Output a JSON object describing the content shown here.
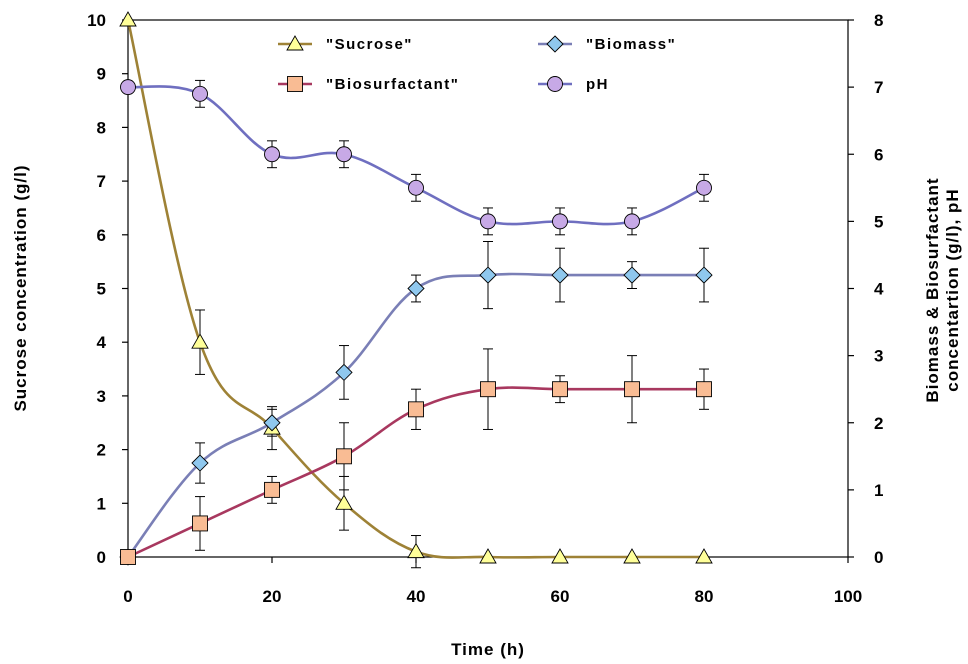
{
  "chart_data": {
    "type": "line",
    "xlabel": "Time (h)",
    "ylabel_left": "Sucrose concentration (g/l)",
    "ylabel_right_lines": [
      "Biomass & Biosurfactant",
      "concentartion (g/l), pH"
    ],
    "xlim": [
      0,
      100
    ],
    "ylim_left": [
      0,
      10
    ],
    "ylim_right": [
      0,
      8
    ],
    "x_ticks": [
      "0",
      "20",
      "40",
      "60",
      "80",
      "100"
    ],
    "y_left_ticks": [
      "0",
      "1",
      "2",
      "3",
      "4",
      "5",
      "6",
      "7",
      "8",
      "9",
      "10"
    ],
    "y_right_ticks": [
      "0",
      "1",
      "2",
      "3",
      "4",
      "5",
      "6",
      "7",
      "8"
    ],
    "grid": false,
    "legend_position": "top-center",
    "series": [
      {
        "name": "\"Sucrose\"",
        "axis": "left",
        "marker": "triangle",
        "line_color": "#9E8236",
        "marker_fill": "#FFFF99",
        "x": [
          0,
          10,
          20,
          30,
          40,
          50,
          60,
          70,
          80
        ],
        "y": [
          10.0,
          4.0,
          2.4,
          1.0,
          0.1,
          0.0,
          0.0,
          0.0,
          0.0
        ],
        "err": [
          0.0,
          0.6,
          0.4,
          0.5,
          0.3,
          0.0,
          0.0,
          0.0,
          0.0
        ]
      },
      {
        "name": "\"Biomass\"",
        "axis": "right",
        "marker": "diamond",
        "line_color": "#7A7FB6",
        "marker_fill": "#8FC8EE",
        "x": [
          0,
          10,
          20,
          30,
          40,
          50,
          60,
          70,
          80
        ],
        "y": [
          0.0,
          1.4,
          2.0,
          2.75,
          4.0,
          4.2,
          4.2,
          4.2,
          4.2
        ],
        "err": [
          0.0,
          0.3,
          0.2,
          0.4,
          0.2,
          0.5,
          0.4,
          0.2,
          0.4
        ]
      },
      {
        "name": "\"Biosurfactant\"",
        "axis": "right",
        "marker": "square",
        "line_color": "#A8385F",
        "marker_fill": "#F9BC94",
        "x": [
          0,
          10,
          20,
          30,
          40,
          50,
          60,
          70,
          80
        ],
        "y": [
          0.0,
          0.5,
          1.0,
          1.5,
          2.2,
          2.5,
          2.5,
          2.5,
          2.5
        ],
        "err": [
          0.0,
          0.4,
          0.2,
          0.5,
          0.3,
          0.6,
          0.2,
          0.5,
          0.3
        ]
      },
      {
        "name": "pH",
        "axis": "right",
        "marker": "circle",
        "line_color": "#6F6FC0",
        "marker_fill": "#C7A9E6",
        "x": [
          0,
          10,
          20,
          30,
          40,
          50,
          60,
          70,
          80
        ],
        "y": [
          7.0,
          6.9,
          6.0,
          6.0,
          5.5,
          5.0,
          5.0,
          5.0,
          5.5
        ],
        "err": [
          0.0,
          0.2,
          0.2,
          0.2,
          0.2,
          0.2,
          0.2,
          0.2,
          0.2
        ]
      }
    ]
  }
}
